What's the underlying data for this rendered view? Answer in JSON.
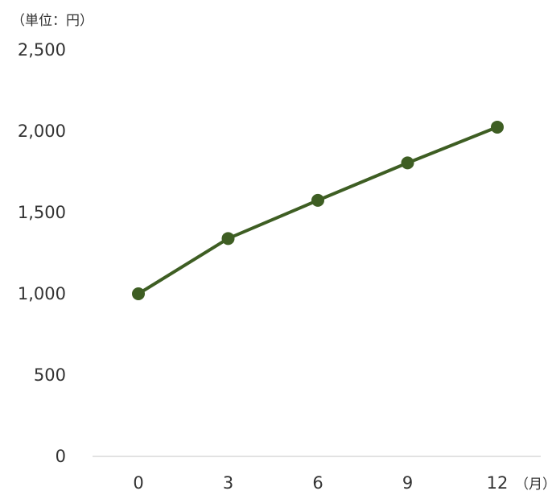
{
  "chart_data": {
    "type": "line",
    "title": "",
    "y_unit_label": "（単位：円）",
    "x_unit_label": "（月）",
    "x": [
      0,
      3,
      6,
      9,
      12
    ],
    "x_tick_labels": [
      "0",
      "3",
      "6",
      "9",
      "12"
    ],
    "y_tick_labels": [
      "0",
      "500",
      "1,000",
      "1,500",
      "2,000",
      "2,500"
    ],
    "y_ticks": [
      0,
      500,
      1000,
      1500,
      2000,
      2500
    ],
    "ylim": [
      0,
      2500
    ],
    "grid": false,
    "series": [
      {
        "values": [
          1000,
          1340,
          1575,
          1805,
          2025
        ],
        "color": "#3e5e23"
      }
    ]
  }
}
